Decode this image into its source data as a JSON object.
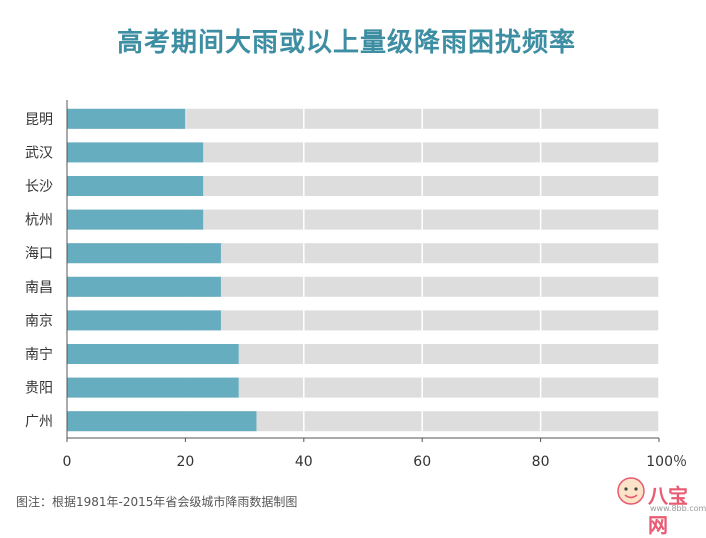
{
  "chart_data": {
    "type": "bar",
    "orientation": "horizontal",
    "title": "高考期间大雨或以上量级降雨困扰频率",
    "categories": [
      "昆明",
      "武汉",
      "长沙",
      "杭州",
      "海口",
      "南昌",
      "南京",
      "南宁",
      "贵阳",
      "广州"
    ],
    "values": [
      20,
      23,
      23,
      23,
      26,
      26,
      26,
      29,
      29,
      32
    ],
    "xlim": [
      0,
      100
    ],
    "xticks": [
      "0",
      "20",
      "40",
      "60",
      "80",
      "100％"
    ],
    "grid": true,
    "colors": {
      "bar": "#67adc0",
      "track": "#dddddd",
      "title": "#3e8ea3"
    }
  },
  "footer": {
    "source": "图注：根据1981年-2015年省会级城市降雨数据制图"
  },
  "branding": {
    "logo_text": "八宝网",
    "logo_url": "www.8bb.com"
  }
}
